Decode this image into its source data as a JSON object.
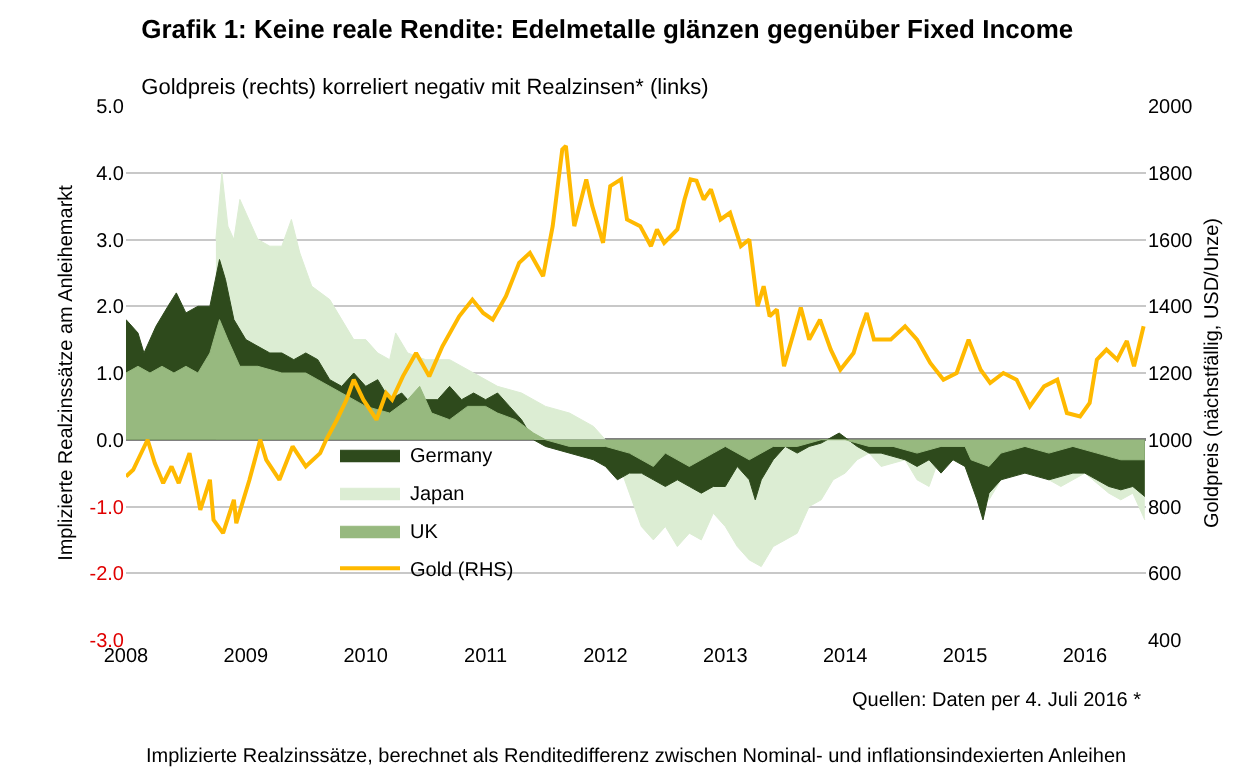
{
  "chart_data": {
    "type": "area",
    "title": "Grafik 1: Keine reale Rendite: Edelmetalle glänzen gegenüber Fixed Income",
    "subtitle": "Goldpreis (rechts) korreliert negativ mit Realzinsen* (links)",
    "ylabel": "Implizierte Realzinssätze am Anleihemarkt",
    "y2label": "Goldpreis (nächstfällig, USD/Unze)",
    "annotations": [
      "Quellen: Daten per 4. Juli 2016 *",
      "Implizierte Realzinssätze, berechnet als Renditedifferenz zwischen Nominal- und inflationsindexierten Anleihen"
    ],
    "xlim": [
      2008,
      2016.51
    ],
    "xticks": [
      2008,
      2009,
      2010,
      2011,
      2012,
      2013,
      2014,
      2015,
      2016
    ],
    "ylim": [
      -3,
      5
    ],
    "yticks": [
      {
        "value": -3,
        "label": "-3.0"
      },
      {
        "value": -2,
        "label": "-2.0"
      },
      {
        "value": -1,
        "label": "-1.0"
      },
      {
        "value": 0,
        "label": "0.0"
      },
      {
        "value": 1,
        "label": "1.0"
      },
      {
        "value": 2,
        "label": "2.0"
      },
      {
        "value": 3,
        "label": "3.0"
      },
      {
        "value": 4,
        "label": "4.0"
      },
      {
        "value": 5,
        "label": "5.0"
      }
    ],
    "y2lim": [
      400,
      2000
    ],
    "y2ticks": [
      400,
      600,
      800,
      1000,
      1200,
      1400,
      1600,
      1800,
      2000
    ],
    "grid": "y",
    "legend": "bottom left",
    "series": [
      {
        "name": "Germany",
        "color": "#2e4a1c",
        "x": [
          2008.0,
          2008.1,
          2008.15,
          2008.25,
          2008.35,
          2008.42,
          2008.5,
          2008.6,
          2008.7,
          2008.78,
          2008.83,
          2008.9,
          2009.0,
          2009.1,
          2009.2,
          2009.3,
          2009.4,
          2009.5,
          2009.6,
          2009.7,
          2009.8,
          2009.9,
          2010.0,
          2010.1,
          2010.2,
          2010.3,
          2010.4,
          2010.5,
          2010.6,
          2010.7,
          2010.8,
          2010.9,
          2011.0,
          2011.1,
          2011.2,
          2011.3,
          2011.4,
          2011.5,
          2011.9,
          2012.0,
          2012.1,
          2012.2,
          2012.3,
          2012.4,
          2012.5,
          2012.6,
          2012.7,
          2012.8,
          2012.9,
          2013.0,
          2013.1,
          2013.2,
          2013.25,
          2013.3,
          2013.4,
          2013.5,
          2013.6,
          2013.7,
          2013.8,
          2013.95,
          2014.1,
          2014.2,
          2014.3,
          2014.5,
          2014.6,
          2014.7,
          2014.8,
          2014.9,
          2015.0,
          2015.1,
          2015.15,
          2015.2,
          2015.3,
          2015.5,
          2015.7,
          2015.9,
          2016.0,
          2016.1,
          2016.2,
          2016.3,
          2016.4,
          2016.5
        ],
        "values": [
          1.8,
          1.6,
          1.3,
          1.7,
          2.0,
          2.2,
          1.9,
          2.0,
          2.0,
          2.7,
          2.4,
          1.8,
          1.5,
          1.4,
          1.3,
          1.3,
          1.2,
          1.3,
          1.2,
          0.9,
          0.8,
          1.0,
          0.8,
          0.9,
          0.6,
          0.7,
          0.5,
          0.6,
          0.6,
          0.8,
          0.6,
          0.7,
          0.6,
          0.7,
          0.5,
          0.3,
          0.0,
          -0.1,
          -0.3,
          -0.4,
          -0.6,
          -0.5,
          -0.5,
          -0.6,
          -0.7,
          -0.6,
          -0.7,
          -0.8,
          -0.7,
          -0.7,
          -0.4,
          -0.6,
          -0.9,
          -0.6,
          -0.3,
          -0.1,
          -0.2,
          -0.1,
          -0.05,
          0.1,
          -0.1,
          -0.2,
          -0.2,
          -0.3,
          -0.4,
          -0.3,
          -0.5,
          -0.3,
          -0.4,
          -0.9,
          -1.2,
          -0.8,
          -0.6,
          -0.5,
          -0.6,
          -0.5,
          -0.5,
          -0.6,
          -0.7,
          -0.75,
          -0.7,
          -0.85
        ]
      },
      {
        "name": "Japan",
        "color": "#dcedd3",
        "x": [
          2008.75,
          2008.8,
          2008.85,
          2008.9,
          2008.95,
          2009.0,
          2009.1,
          2009.2,
          2009.3,
          2009.38,
          2009.45,
          2009.55,
          2009.7,
          2009.8,
          2009.9,
          2010.0,
          2010.1,
          2010.2,
          2010.25,
          2010.35,
          2010.5,
          2010.7,
          2010.9,
          2011.1,
          2011.3,
          2011.5,
          2011.7,
          2011.9,
          2012.0,
          2012.1,
          2012.2,
          2012.3,
          2012.4,
          2012.5,
          2012.6,
          2012.7,
          2012.8,
          2012.9,
          2013.0,
          2013.1,
          2013.2,
          2013.3,
          2013.4,
          2013.5,
          2013.6,
          2013.7,
          2013.8,
          2013.9,
          2014.0,
          2014.1,
          2014.2,
          2014.3,
          2014.5,
          2014.6,
          2014.7,
          2014.8,
          2015.0,
          2015.1,
          2015.2,
          2015.3,
          2015.4,
          2015.6,
          2015.8,
          2016.0,
          2016.2,
          2016.3,
          2016.4,
          2016.5
        ],
        "values": [
          3.0,
          4.0,
          3.2,
          3.0,
          3.6,
          3.4,
          3.0,
          2.9,
          2.9,
          3.3,
          2.8,
          2.3,
          2.1,
          1.8,
          1.5,
          1.5,
          1.3,
          1.2,
          1.6,
          1.3,
          1.2,
          1.2,
          1.0,
          0.8,
          0.7,
          0.5,
          0.4,
          0.2,
          0.0,
          -0.3,
          -0.8,
          -1.3,
          -1.5,
          -1.3,
          -1.6,
          -1.4,
          -1.5,
          -1.1,
          -1.3,
          -1.6,
          -1.8,
          -1.9,
          -1.6,
          -1.5,
          -1.4,
          -1.0,
          -0.9,
          -0.6,
          -0.5,
          -0.3,
          -0.2,
          -0.4,
          -0.3,
          -0.6,
          -0.7,
          -0.2,
          -0.4,
          -0.8,
          -0.9,
          -0.6,
          -0.5,
          -0.5,
          -0.7,
          -0.5,
          -0.8,
          -0.9,
          -0.8,
          -1.2
        ]
      },
      {
        "name": "UK",
        "color": "#97b97f",
        "x": [
          2008.0,
          2008.1,
          2008.2,
          2008.3,
          2008.4,
          2008.5,
          2008.6,
          2008.7,
          2008.78,
          2008.85,
          2008.95,
          2009.1,
          2009.3,
          2009.5,
          2009.6,
          2009.8,
          2010.0,
          2010.2,
          2010.35,
          2010.45,
          2010.55,
          2010.7,
          2010.85,
          2011.0,
          2011.1,
          2011.25,
          2011.4,
          2011.5,
          2011.7,
          2012.0,
          2012.2,
          2012.4,
          2012.5,
          2012.7,
          2012.9,
          2013.0,
          2013.2,
          2013.4,
          2013.6,
          2013.8,
          2014.0,
          2014.2,
          2014.4,
          2014.6,
          2014.8,
          2015.0,
          2015.05,
          2015.2,
          2015.3,
          2015.5,
          2015.7,
          2015.9,
          2016.1,
          2016.3,
          2016.5
        ],
        "values": [
          1.0,
          1.1,
          1.0,
          1.1,
          1.0,
          1.1,
          1.0,
          1.3,
          1.8,
          1.5,
          1.1,
          1.1,
          1.0,
          1.0,
          0.9,
          0.7,
          0.5,
          0.4,
          0.6,
          0.8,
          0.4,
          0.3,
          0.5,
          0.5,
          0.4,
          0.3,
          0.1,
          0.0,
          -0.1,
          -0.1,
          -0.2,
          -0.4,
          -0.2,
          -0.4,
          -0.2,
          -0.1,
          -0.3,
          -0.1,
          -0.1,
          0.0,
          0.0,
          -0.1,
          -0.1,
          -0.2,
          -0.1,
          -0.1,
          -0.3,
          -0.4,
          -0.2,
          -0.1,
          -0.2,
          -0.1,
          -0.2,
          -0.3,
          -0.3
        ]
      },
      {
        "name": "Gold (RHS)",
        "type": "line",
        "axis": "y2",
        "color": "#ffb900",
        "x": [
          2008.0,
          2008.06,
          2008.18,
          2008.24,
          2008.31,
          2008.38,
          2008.44,
          2008.53,
          2008.62,
          2008.7,
          2008.73,
          2008.81,
          2008.9,
          2008.92,
          2009.03,
          2009.12,
          2009.17,
          2009.28,
          2009.39,
          2009.5,
          2009.62,
          2009.67,
          2009.76,
          2009.84,
          2009.9,
          2009.98,
          2010.09,
          2010.17,
          2010.22,
          2010.31,
          2010.42,
          2010.53,
          2010.64,
          2010.78,
          2010.89,
          2010.98,
          2011.06,
          2011.17,
          2011.28,
          2011.37,
          2011.48,
          2011.56,
          2011.64,
          2011.67,
          2011.74,
          2011.84,
          2011.89,
          2011.98,
          2012.04,
          2012.13,
          2012.18,
          2012.29,
          2012.38,
          2012.43,
          2012.49,
          2012.6,
          2012.66,
          2012.71,
          2012.76,
          2012.82,
          2012.88,
          2012.96,
          2013.04,
          2013.13,
          2013.2,
          2013.27,
          2013.32,
          2013.37,
          2013.43,
          2013.49,
          2013.57,
          2013.63,
          2013.7,
          2013.79,
          2013.88,
          2013.96,
          2014.07,
          2014.13,
          2014.18,
          2014.24,
          2014.38,
          2014.5,
          2014.6,
          2014.71,
          2014.82,
          2014.93,
          2015.03,
          2015.13,
          2015.21,
          2015.32,
          2015.43,
          2015.54,
          2015.66,
          2015.77,
          2015.85,
          2015.96,
          2016.04,
          2016.1,
          2016.18,
          2016.27,
          2016.35,
          2016.41,
          2016.49
        ],
        "values": [
          890,
          910,
          1000,
          930,
          870,
          920,
          870,
          960,
          790,
          880,
          760,
          720,
          820,
          750,
          880,
          1000,
          940,
          880,
          980,
          920,
          960,
          1000,
          1060,
          1120,
          1180,
          1120,
          1060,
          1140,
          1120,
          1190,
          1260,
          1190,
          1280,
          1370,
          1420,
          1380,
          1360,
          1430,
          1530,
          1560,
          1490,
          1640,
          1870,
          1880,
          1640,
          1780,
          1700,
          1590,
          1760,
          1780,
          1660,
          1640,
          1580,
          1630,
          1590,
          1630,
          1720,
          1780,
          1776,
          1720,
          1750,
          1660,
          1680,
          1580,
          1600,
          1400,
          1460,
          1370,
          1390,
          1220,
          1320,
          1396,
          1300,
          1360,
          1270,
          1210,
          1260,
          1330,
          1380,
          1300,
          1300,
          1340,
          1300,
          1230,
          1180,
          1200,
          1300,
          1210,
          1170,
          1200,
          1180,
          1100,
          1160,
          1180,
          1080,
          1070,
          1110,
          1240,
          1270,
          1240,
          1296,
          1220,
          1340
        ]
      }
    ]
  }
}
